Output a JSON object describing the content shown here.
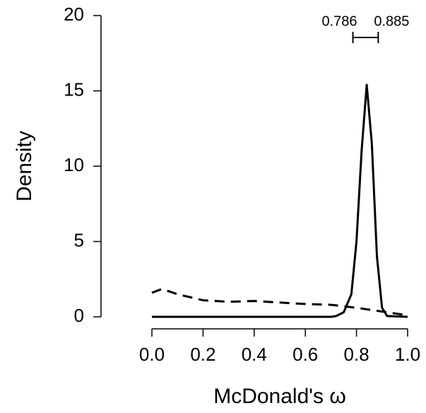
{
  "chart_data": {
    "type": "line",
    "xlabel": "McDonald's ω",
    "ylabel": "Density",
    "xlim": [
      0,
      1
    ],
    "ylim": [
      0,
      20
    ],
    "xticks": [
      {
        "value": 0,
        "label": "0.0"
      },
      {
        "value": 0.2,
        "label": "0.2"
      },
      {
        "value": 0.4,
        "label": "0.4"
      },
      {
        "value": 0.6,
        "label": "0.6"
      },
      {
        "value": 0.8,
        "label": "0.8"
      },
      {
        "value": 1,
        "label": "1.0"
      }
    ],
    "yticks": [
      0,
      5,
      10,
      15,
      20
    ],
    "grid": false,
    "series": [
      {
        "color": "#000000",
        "style": "solid",
        "x": [
          0,
          0.1,
          0.2,
          0.3,
          0.4,
          0.5,
          0.6,
          0.7,
          0.72,
          0.75,
          0.78,
          0.8,
          0.82,
          0.84,
          0.86,
          0.88,
          0.9,
          0.92,
          1
        ],
        "values": [
          0,
          0,
          0,
          0,
          0,
          0,
          0,
          0,
          0.05,
          0.3,
          1.5,
          5,
          11,
          15.4,
          11.5,
          4,
          0.6,
          0.05,
          0
        ]
      },
      {
        "color": "#000000",
        "style": "dashed",
        "x": [
          0,
          0.04,
          0.1,
          0.2,
          0.3,
          0.4,
          0.5,
          0.6,
          0.7,
          0.8,
          0.9,
          1
        ],
        "values": [
          1.6,
          1.85,
          1.5,
          1.1,
          1.0,
          1.05,
          0.95,
          0.85,
          0.8,
          0.6,
          0.35,
          0.1
        ]
      }
    ],
    "interval": {
      "lower": 0.786,
      "upper": 0.885
    }
  }
}
